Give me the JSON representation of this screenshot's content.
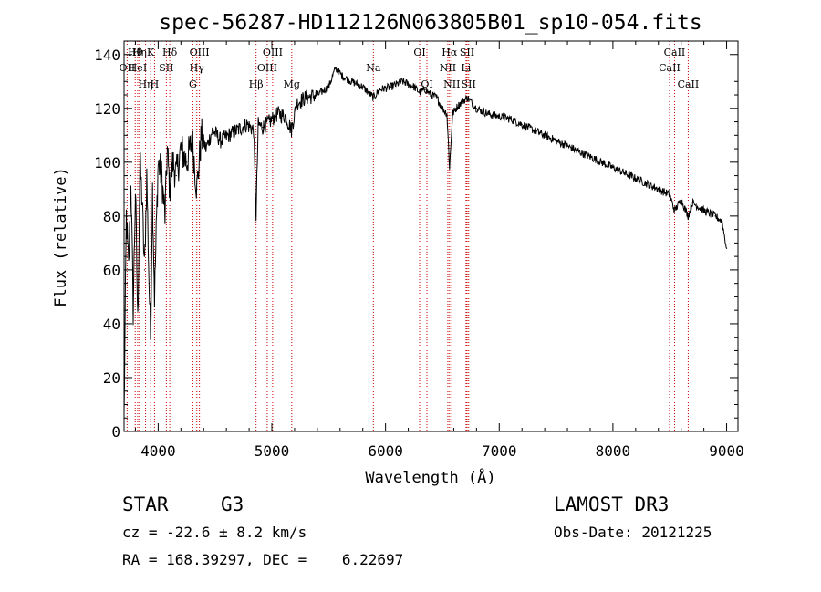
{
  "chart_data": {
    "type": "line",
    "title": "spec-56287-HD112126N063805B01_sp10-054.fits",
    "xlabel": "Wavelength (Å)",
    "ylabel": "Flux (relative)",
    "xlim": [
      3700,
      9100
    ],
    "ylim": [
      0,
      145
    ],
    "x_ticks": [
      4000,
      5000,
      6000,
      7000,
      8000,
      9000
    ],
    "x_tick_labels": [
      "4000",
      "5000",
      "6000",
      "7000",
      "8000",
      "9000"
    ],
    "y_ticks": [
      0,
      20,
      40,
      60,
      80,
      100,
      120,
      140
    ],
    "y_tick_labels": [
      "0",
      "20",
      "40",
      "60",
      "80",
      "100",
      "120",
      "140"
    ],
    "series": [
      {
        "name": "spectrum",
        "color": "#000000",
        "x": [
          3700,
          3720,
          3740,
          3760,
          3780,
          3800,
          3820,
          3840,
          3860,
          3880,
          3900,
          3920,
          3933,
          3950,
          3968,
          3990,
          4000,
          4030,
          4060,
          4080,
          4102,
          4130,
          4160,
          4200,
          4250,
          4300,
          4340,
          4380,
          4420,
          4480,
          4550,
          4620,
          4700,
          4780,
          4840,
          4861,
          4880,
          4920,
          4980,
          5050,
          5120,
          5172,
          5220,
          5300,
          5400,
          5500,
          5560,
          5620,
          5700,
          5800,
          5893,
          5950,
          6050,
          6150,
          6250,
          6300,
          6350,
          6400,
          6450,
          6500,
          6540,
          6563,
          6590,
          6620,
          6660,
          6720,
          6800,
          6900,
          7000,
          7100,
          7200,
          7300,
          7400,
          7500,
          7600,
          7700,
          7800,
          7900,
          8000,
          8100,
          8200,
          8300,
          8400,
          8498,
          8542,
          8600,
          8662,
          8700,
          8800,
          8900,
          8960,
          9000
        ],
        "y": [
          5,
          80,
          60,
          95,
          45,
          90,
          40,
          100,
          85,
          60,
          95,
          55,
          35,
          90,
          50,
          85,
          100,
          95,
          80,
          105,
          90,
          100,
          95,
          105,
          100,
          108,
          90,
          110,
          105,
          112,
          108,
          110,
          112,
          114,
          112,
          80,
          114,
          113,
          115,
          118,
          117,
          112,
          122,
          124,
          125,
          128,
          135,
          132,
          130,
          128,
          124,
          127,
          128,
          130,
          128,
          126,
          127,
          125,
          124,
          120,
          118,
          98,
          118,
          120,
          122,
          124,
          120,
          118,
          117,
          116,
          114,
          112,
          110,
          108,
          106,
          104,
          102,
          100,
          98,
          96,
          94,
          92,
          90,
          88,
          82,
          86,
          80,
          85,
          82,
          80,
          78,
          68
        ]
      }
    ],
    "line_markers": [
      {
        "label": "OII",
        "x": 3727,
        "row": 1
      },
      {
        "label": "Hθ",
        "x": 3798,
        "row": 0
      },
      {
        "label": "HeI",
        "x": 3820,
        "row": 1
      },
      {
        "label": "Hη",
        "x": 3835,
        "row": 0
      },
      {
        "label": "Hη",
        "x": 3889,
        "row": 2
      },
      {
        "label": "K",
        "x": 3934,
        "row": 0
      },
      {
        "label": "H",
        "x": 3968,
        "row": 2
      },
      {
        "label": "SII",
        "x": 4072,
        "row": 1
      },
      {
        "label": "Hδ",
        "x": 4102,
        "row": 0
      },
      {
        "label": "OIII",
        "x": 4363,
        "row": 0
      },
      {
        "label": "Hγ",
        "x": 4340,
        "row": 1
      },
      {
        "label": "G",
        "x": 4305,
        "row": 2
      },
      {
        "label": "Hβ",
        "x": 4861,
        "row": 2
      },
      {
        "label": "OIII",
        "x": 4959,
        "row": 1
      },
      {
        "label": "OIII",
        "x": 5007,
        "row": 0
      },
      {
        "label": "Mg",
        "x": 5175,
        "row": 2
      },
      {
        "label": "Na",
        "x": 5893,
        "row": 1
      },
      {
        "label": "OI",
        "x": 6300,
        "row": 0
      },
      {
        "label": "OI",
        "x": 6364,
        "row": 2
      },
      {
        "label": "NII",
        "x": 6548,
        "row": 1
      },
      {
        "label": "Hα",
        "x": 6563,
        "row": 0
      },
      {
        "label": "NII",
        "x": 6583,
        "row": 2
      },
      {
        "label": "Li",
        "x": 6708,
        "row": 1
      },
      {
        "label": "SII",
        "x": 6717,
        "row": 0
      },
      {
        "label": "SII",
        "x": 6731,
        "row": 2
      },
      {
        "label": "CaII",
        "x": 8498,
        "row": 1
      },
      {
        "label": "CaII",
        "x": 8542,
        "row": 0
      },
      {
        "label": "CaII",
        "x": 8662,
        "row": 2
      }
    ],
    "marker_color": "#cc0000"
  },
  "info": {
    "object_class": "STAR",
    "subclass": "G3",
    "survey": "LAMOST DR3",
    "redshift_text": "cz = -22.6 ± 8.2 km/s",
    "obs_date_text": "Obs-Date: 20121225",
    "coords_text": "RA = 168.39297, DEC =    6.22697"
  }
}
